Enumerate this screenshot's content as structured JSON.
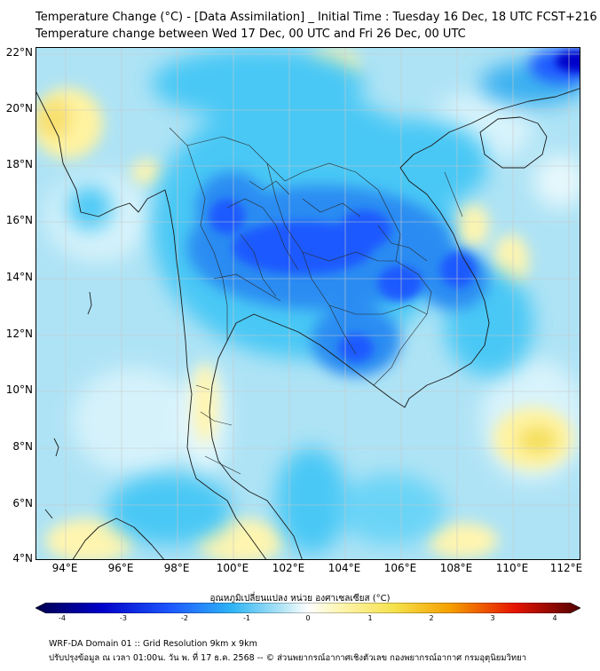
{
  "title_line1": "Temperature Change (°C) - [Data Assimilation] _ Initial Time : Tuesday 16 Dec, 18 UTC FCST+216",
  "title_line2": "Temperature change between Wed 17 Dec, 00 UTC and Fri 26 Dec, 00 UTC",
  "lat_labels": [
    "22°N",
    "20°N",
    "18°N",
    "16°N",
    "14°N",
    "12°N",
    "10°N",
    "8°N",
    "6°N",
    "4°N"
  ],
  "lon_labels": [
    "94°E",
    "96°E",
    "98°E",
    "100°E",
    "102°E",
    "104°E",
    "106°E",
    "108°E",
    "110°E",
    "112°E"
  ],
  "colorbar": {
    "title": "อุณหภูมิเปลี่ยนแปลง หน่วย องศาเซลเซียส (°C)",
    "ticks": [
      "-4",
      "-3",
      "-2",
      "-1",
      "0",
      "1",
      "2",
      "3",
      "4"
    ],
    "range": [
      -4,
      4
    ]
  },
  "colors": {
    "deep_blue": "#0000b4",
    "blue": "#1e5aff",
    "light_blue": "#4ac8f5",
    "pale_blue": "#aee3f5",
    "near_zero": "#e6f8fc",
    "pale_yellow": "#fff5b0",
    "yellow": "#f5e14b",
    "orange": "#f5a000",
    "red": "#e61400",
    "dark_red": "#780000"
  },
  "footer_line1": "WRF-DA Domain 01 :: Grid Resolution 9km x 9km",
  "footer_line2": "ปรับปรุงข้อมูล ณ เวลา 01:00น. วัน พ. ที่ 17 ธ.ค. 2568 -- © ส่วนพยากรณ์อากาศเชิงตัวเลข กองพยากรณ์อากาศ กรมอุตุนิยมวิทยา"
}
